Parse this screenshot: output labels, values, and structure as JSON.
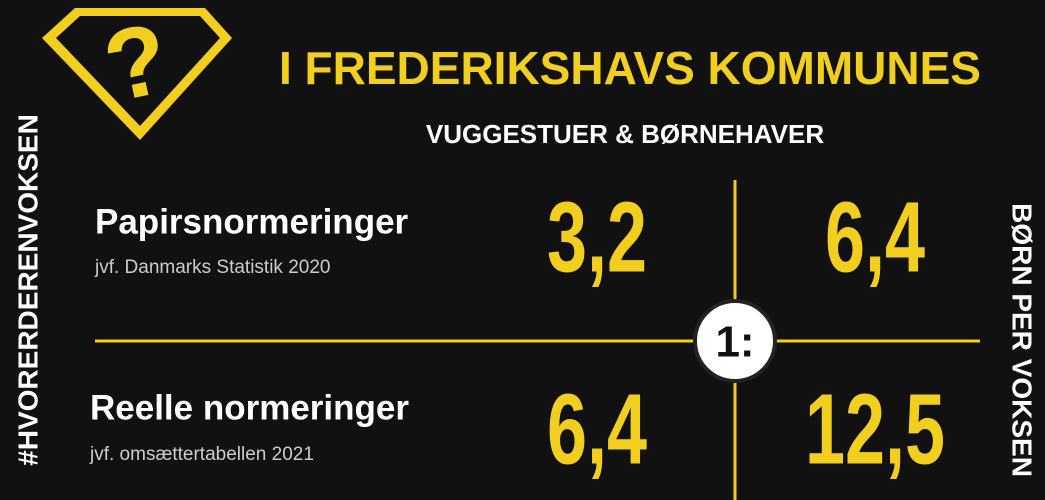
{
  "logo": {
    "symbol": "?"
  },
  "header": {
    "title": "I FREDERIKSHAVS KOMMUNES",
    "subtitle": "VUGGESTUER & BØRNEHAVER"
  },
  "side_left": "#HVORERDERENVOKSEN",
  "side_right": "BØRN PER VOKSEN",
  "ratio_symbol": "1:",
  "rows": [
    {
      "label": "Papirsnormeringer",
      "source": "jvf. Danmarks Statistik 2020",
      "values": [
        "3,2",
        "6,4"
      ]
    },
    {
      "label": "Reelle normeringer",
      "source": "jvf. omsættertabellen 2021",
      "values": [
        "6,4",
        "12,5"
      ]
    }
  ]
}
